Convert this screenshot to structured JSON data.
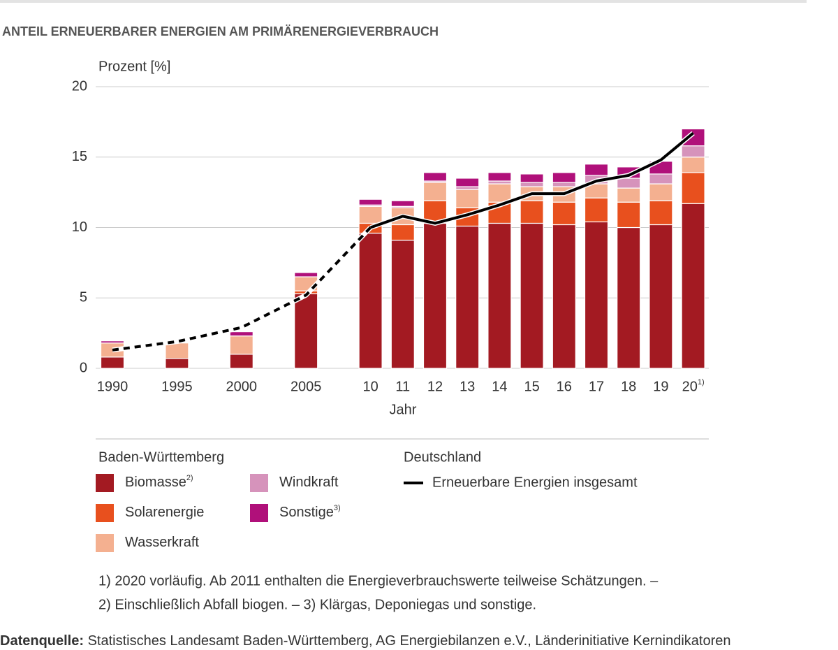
{
  "chart_data": {
    "type": "bar",
    "stacked": true,
    "title": "ANTEIL ERNEUERBARER ENERGIEN AM PRIMÄRENERGIEVERBRAUCH",
    "y_label": "Prozent [%]",
    "x_label": "Jahr",
    "categories": [
      "1990",
      "1995",
      "2000",
      "2005",
      "10",
      "11",
      "12",
      "13",
      "14",
      "15",
      "16",
      "17",
      "18",
      "19",
      "20"
    ],
    "category_marks": [
      null,
      null,
      null,
      null,
      null,
      null,
      null,
      null,
      null,
      null,
      null,
      null,
      null,
      null,
      "1)"
    ],
    "ylim": [
      0,
      20
    ],
    "yticks": [
      0,
      5,
      10,
      15,
      20
    ],
    "grid": true,
    "legend_titles": {
      "bars": "Baden-Württemberg",
      "line": "Deutschland"
    },
    "series": [
      {
        "name": "Biomasse",
        "note": "2)",
        "color": "#a31a22",
        "values": [
          0.8,
          0.7,
          1.0,
          5.3,
          9.6,
          9.1,
          10.3,
          10.1,
          10.3,
          10.3,
          10.2,
          10.4,
          10.0,
          10.2,
          11.7
        ]
      },
      {
        "name": "Solarenergie",
        "color": "#e8501e",
        "values": [
          0,
          0,
          0,
          0.2,
          0.7,
          1.1,
          1.6,
          1.3,
          1.5,
          1.6,
          1.6,
          1.7,
          1.8,
          1.7,
          2.2
        ]
      },
      {
        "name": "Wasserkraft",
        "color": "#f4b090",
        "values": [
          1.0,
          1.1,
          1.3,
          1.0,
          1.2,
          1.2,
          1.3,
          1.3,
          1.3,
          1.0,
          1.1,
          1.0,
          1.0,
          1.2,
          1.1
        ]
      },
      {
        "name": "Windkraft",
        "color": "#d693bb",
        "values": [
          0,
          0,
          0,
          0,
          0.1,
          0.1,
          0.1,
          0.2,
          0.2,
          0.3,
          0.3,
          0.6,
          0.7,
          0.7,
          0.8
        ]
      },
      {
        "name": "Sonstige",
        "note": "3)",
        "color": "#b0107a",
        "values": [
          0.15,
          0,
          0.3,
          0.3,
          0.4,
          0.4,
          0.6,
          0.6,
          0.6,
          0.6,
          0.7,
          0.8,
          0.8,
          0.9,
          1.2
        ]
      }
    ],
    "line": {
      "type": "line",
      "name": "Erneuerbare Energien insgesamt",
      "color": "#000000",
      "values": [
        1.3,
        1.9,
        2.9,
        5.2,
        10.0,
        10.8,
        10.3,
        10.9,
        11.6,
        12.4,
        12.4,
        13.3,
        13.7,
        14.8,
        16.7
      ]
    }
  },
  "footnotes": [
    "1) 2020 vorläufig. Ab 2011 enthalten die Energieverbrauchswerte teilweise Schätzungen. –",
    "2) Einschließlich Abfall biogen. – 3) Klärgas, Deponiegas und sonstige."
  ],
  "source": {
    "label": "Datenquelle:",
    "text": " Statistisches Landesamt Baden-Württemberg, AG Energiebilanzen e.V., Länderinitiative Kernindikatoren"
  }
}
